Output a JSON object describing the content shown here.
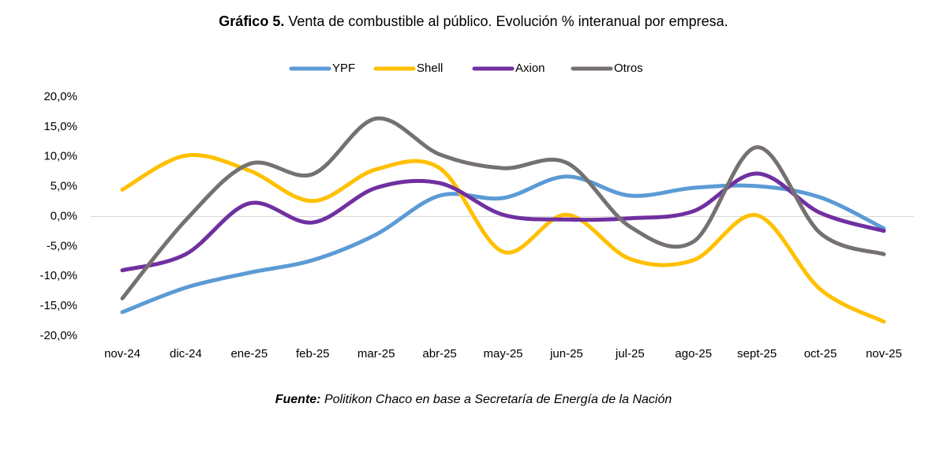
{
  "chart_data": {
    "type": "line",
    "title_label": "Gráfico 5.",
    "title": "Venta de combustible al público. Evolución % interanual por empresa.",
    "source_label": "Fuente:",
    "source": "Politikon Chaco en base a Secretaría de Energía de la Nación",
    "categories": [
      "nov-24",
      "dic-24",
      "ene-25",
      "feb-25",
      "mar-25",
      "abr-25",
      "may-25",
      "jun-25",
      "jul-25",
      "ago-25",
      "sept-25",
      "oct-25",
      "nov-25"
    ],
    "series": [
      {
        "name": "YPF",
        "color": "#5b9bd5",
        "values": [
          -16.0,
          -11.9,
          -9.4,
          -7.3,
          -3.0,
          3.5,
          3.1,
          6.7,
          3.5,
          4.8,
          5.1,
          3.2,
          -2.0
        ]
      },
      {
        "name": "Shell",
        "color": "#ffc000",
        "values": [
          4.5,
          10.2,
          7.7,
          2.6,
          7.9,
          8.1,
          -5.9,
          0.3,
          -7.1,
          -7.3,
          0.2,
          -12.2,
          -17.6
        ]
      },
      {
        "name": "Axion",
        "color": "#7030a0",
        "values": [
          -9.0,
          -6.3,
          2.2,
          -1.0,
          4.8,
          5.6,
          0.3,
          -0.5,
          -0.3,
          0.9,
          7.2,
          0.6,
          -2.4
        ]
      },
      {
        "name": "Otros",
        "color": "#767171",
        "values": [
          -13.7,
          -0.6,
          8.8,
          7.1,
          16.4,
          10.4,
          8.1,
          9.0,
          -1.7,
          -4.2,
          11.6,
          -2.8,
          -6.3
        ]
      }
    ],
    "ylim": [
      -20,
      20
    ],
    "yticks": [
      {
        "value": -20,
        "label": "-20,0%"
      },
      {
        "value": -15,
        "label": "-15,0%"
      },
      {
        "value": -10,
        "label": "-10,0%"
      },
      {
        "value": -5,
        "label": "-5,0%"
      },
      {
        "value": 0,
        "label": "0,0%"
      },
      {
        "value": 5,
        "label": "5,0%"
      },
      {
        "value": 10,
        "label": "10,0%"
      },
      {
        "value": 15,
        "label": "15,0%"
      },
      {
        "value": 20,
        "label": "20,0%"
      }
    ],
    "smooth": true,
    "legend": "top"
  }
}
